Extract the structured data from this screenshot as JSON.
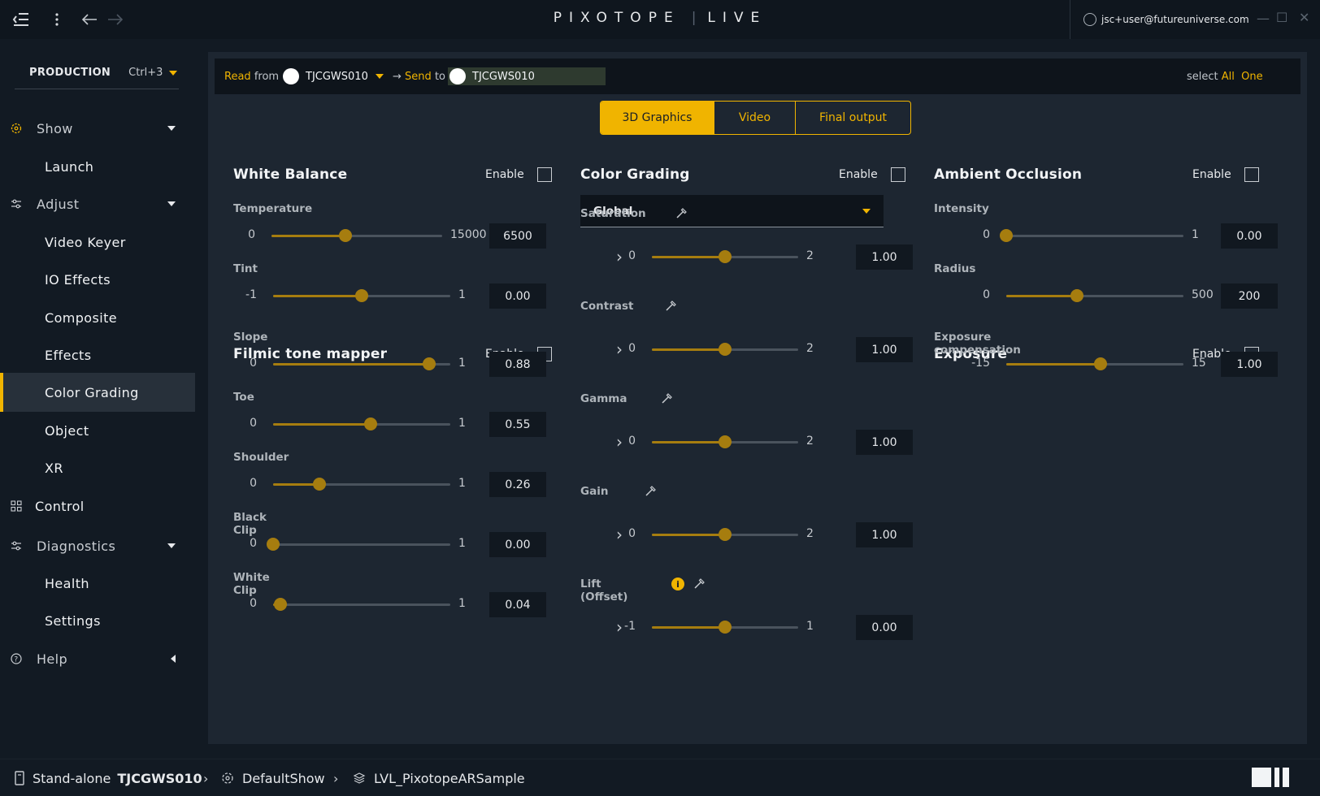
{
  "app": {
    "logo": "PIXOTOPE",
    "logo_suffix": "LIVE",
    "user_email": "jsc+user@futureuniverse.com"
  },
  "sidebar": {
    "production_label": "PRODUCTION",
    "production_shortcut": "Ctrl+3",
    "items": [
      {
        "label": "Show",
        "level": "top",
        "icon": "show-icon",
        "expanded": true
      },
      {
        "label": "Launch",
        "level": "sub"
      },
      {
        "label": "Adjust",
        "level": "top",
        "icon": "sliders-icon",
        "expanded": true
      },
      {
        "label": "Video Keyer",
        "level": "sub"
      },
      {
        "label": "IO Effects",
        "level": "sub"
      },
      {
        "label": "Composite",
        "level": "sub"
      },
      {
        "label": "Effects",
        "level": "sub"
      },
      {
        "label": "Color Grading",
        "level": "sub",
        "active": true
      },
      {
        "label": "Object",
        "level": "sub"
      },
      {
        "label": "XR",
        "level": "sub"
      },
      {
        "label": "Control",
        "level": "top",
        "icon": "grid-icon"
      },
      {
        "label": "Diagnostics",
        "level": "top",
        "icon": "sliders-icon",
        "expanded": true
      },
      {
        "label": "Health",
        "level": "sub"
      },
      {
        "label": "Settings",
        "level": "sub"
      },
      {
        "label": "Help",
        "level": "top",
        "icon": "help-icon",
        "collapsed": true
      }
    ]
  },
  "rsbar": {
    "read": "Read",
    "from": "from",
    "read_machine": "TJCGWS010",
    "send_arrow": "→",
    "send": "Send",
    "to": "to",
    "send_machine": "TJCGWS010",
    "select": "select",
    "all": "All",
    "one": "One"
  },
  "tabs": [
    "3D Graphics",
    "Video",
    "Final output"
  ],
  "enable_label": "Enable",
  "white_balance": {
    "title": "White Balance",
    "params": [
      {
        "label": "Temperature",
        "min": "0",
        "max": "15000",
        "value": "6500",
        "fraction": 0.4333
      },
      {
        "label": "Tint",
        "min": "-1",
        "max": "1",
        "value": "0.00",
        "fraction": 0.5
      }
    ]
  },
  "filmic": {
    "title": "Filmic tone mapper",
    "params": [
      {
        "label": "Slope",
        "min": "0",
        "max": "1",
        "value": "0.88",
        "fraction": 0.88
      },
      {
        "label": "Toe",
        "min": "0",
        "max": "1",
        "value": "0.55",
        "fraction": 0.55
      },
      {
        "label": "Shoulder",
        "min": "0",
        "max": "1",
        "value": "0.26",
        "fraction": 0.26
      },
      {
        "label": "Black Clip",
        "min": "0",
        "max": "1",
        "value": "0.00",
        "fraction": 0.0
      },
      {
        "label": "White Clip",
        "min": "0",
        "max": "1",
        "value": "0.04",
        "fraction": 0.04
      }
    ]
  },
  "color_grading": {
    "title": "Color Grading",
    "scope": "Global",
    "params": [
      {
        "label": "Saturation",
        "min": "0",
        "max": "2",
        "value": "1.00",
        "fraction": 0.5
      },
      {
        "label": "Contrast",
        "min": "0",
        "max": "2",
        "value": "1.00",
        "fraction": 0.5
      },
      {
        "label": "Gamma",
        "min": "0",
        "max": "2",
        "value": "1.00",
        "fraction": 0.5
      },
      {
        "label": "Gain",
        "min": "0",
        "max": "2",
        "value": "1.00",
        "fraction": 0.5
      },
      {
        "label": "Lift (Offset)",
        "min": "-1",
        "max": "1",
        "value": "0.00",
        "fraction": 0.5,
        "info": true
      }
    ]
  },
  "ambient_occlusion": {
    "title": "Ambient Occlusion",
    "params": [
      {
        "label": "Intensity",
        "min": "0",
        "max": "1",
        "value": "0.00",
        "fraction": 0.0
      },
      {
        "label": "Radius",
        "min": "0",
        "max": "500",
        "value": "200",
        "fraction": 0.4
      }
    ]
  },
  "exposure": {
    "title": "Exposure",
    "params": [
      {
        "label": "Exposure compensation",
        "min": "-15",
        "max": "15",
        "value": "1.00",
        "fraction": 0.5333
      }
    ]
  },
  "status": {
    "mode": "Stand-alone",
    "machine": "TJCGWS010",
    "show": "DefaultShow",
    "level": "LVL_PixotopeARSample"
  },
  "colors": {
    "accent": "#f0b400",
    "slider": "#a67d0f",
    "panel": "#1d2631",
    "background": "#121a23"
  }
}
